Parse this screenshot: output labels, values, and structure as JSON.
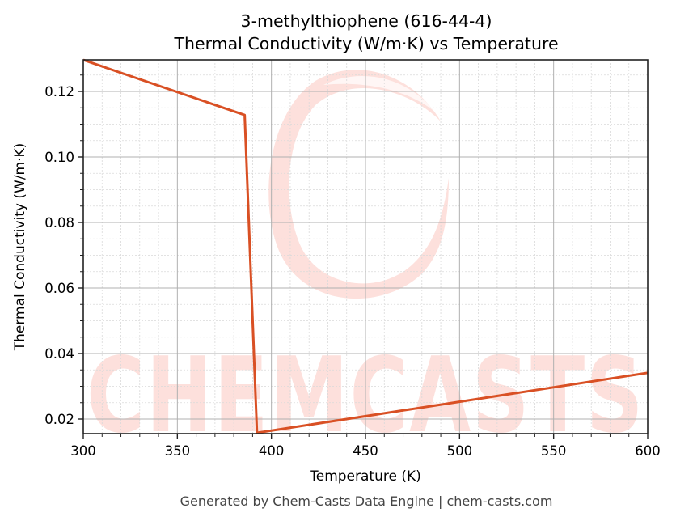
{
  "chart": {
    "title_line1": "3-methylthiophene (616-44-4)",
    "title_line2": "Thermal Conductivity (W/m·K) vs Temperature",
    "xlabel": "Temperature (K)",
    "ylabel": "Thermal Conductivity (W/m·K)",
    "footer": "Generated by Chem-Casts Data Engine | chem-casts.com",
    "watermark": "CHEMCASTS",
    "line_color": "#d95024",
    "watermark_color": "#fde0dc"
  },
  "chart_data": {
    "type": "line",
    "title": "3-methylthiophene (616-44-4) Thermal Conductivity (W/m·K) vs Temperature",
    "xlabel": "Temperature (K)",
    "ylabel": "Thermal Conductivity (W/m·K)",
    "xlim": [
      300,
      600
    ],
    "ylim": [
      0.0155,
      0.1296
    ],
    "xticks": [
      300,
      350,
      400,
      450,
      500,
      550,
      600
    ],
    "xtick_labels": [
      "300",
      "350",
      "400",
      "450",
      "500",
      "550",
      "600"
    ],
    "yticks": [
      0.02,
      0.04,
      0.06,
      0.08,
      0.1,
      0.12
    ],
    "ytick_labels": [
      "0.02",
      "0.04",
      "0.06",
      "0.08",
      "0.10",
      "0.12"
    ],
    "grid": true,
    "minor_grid": true,
    "legend": null,
    "series": [
      {
        "name": "Thermal Conductivity",
        "color": "#d95024",
        "x": [
          300,
          385.8,
          392.3,
          600
        ],
        "y": [
          0.1296,
          0.1128,
          0.0158,
          0.0341
        ]
      }
    ]
  }
}
